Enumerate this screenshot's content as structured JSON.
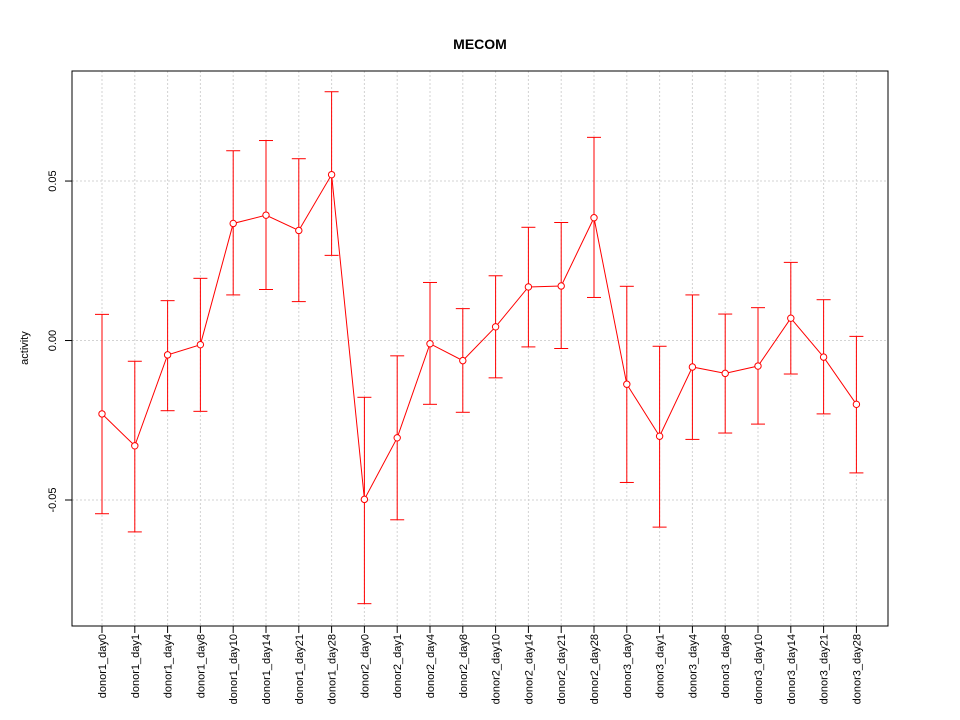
{
  "chart_data": {
    "type": "line",
    "title": "MECOM",
    "xlabel": "",
    "ylabel": "activity",
    "color": "#ff0000",
    "grid": true,
    "ylim": [
      -0.0895,
      0.0845
    ],
    "yticks": [
      -0.05,
      0.0,
      0.05
    ],
    "ytick_labels": [
      "-0.05",
      "0.00",
      "0.05"
    ],
    "categories": [
      "donor1_day0",
      "donor1_day1",
      "donor1_day4",
      "donor1_day8",
      "donor1_day10",
      "donor1_day14",
      "donor1_day21",
      "donor1_day28",
      "donor2_day0",
      "donor2_day1",
      "donor2_day4",
      "donor2_day8",
      "donor2_day10",
      "donor2_day14",
      "donor2_day21",
      "donor2_day28",
      "donor3_day0",
      "donor3_day1",
      "donor3_day4",
      "donor3_day8",
      "donor3_day10",
      "donor3_day14",
      "donor3_day21",
      "donor3_day28"
    ],
    "values": [
      -0.023,
      -0.033,
      -0.0045,
      -0.0013,
      0.0367,
      0.0393,
      0.0345,
      0.052,
      -0.0498,
      -0.0305,
      -0.001,
      -0.0063,
      0.0043,
      0.0168,
      0.0171,
      0.0385,
      -0.0137,
      -0.03,
      -0.0083,
      -0.0103,
      -0.008,
      0.007,
      -0.0052,
      -0.02
    ],
    "upper": [
      0.0082,
      -0.0065,
      0.0125,
      0.0195,
      0.0595,
      0.0627,
      0.057,
      0.078,
      -0.0178,
      -0.0048,
      0.0182,
      0.01,
      0.0203,
      0.0355,
      0.037,
      0.0637,
      0.017,
      -0.0018,
      0.0143,
      0.0083,
      0.0103,
      0.0245,
      0.0128,
      0.0013
    ],
    "lower": [
      -0.0543,
      -0.06,
      -0.022,
      -0.0222,
      0.0143,
      0.016,
      0.0122,
      0.0267,
      -0.0825,
      -0.0562,
      -0.02,
      -0.0225,
      -0.0117,
      -0.002,
      -0.0025,
      0.0135,
      -0.0445,
      -0.0585,
      -0.031,
      -0.029,
      -0.0262,
      -0.0105,
      -0.023,
      -0.0415
    ]
  }
}
